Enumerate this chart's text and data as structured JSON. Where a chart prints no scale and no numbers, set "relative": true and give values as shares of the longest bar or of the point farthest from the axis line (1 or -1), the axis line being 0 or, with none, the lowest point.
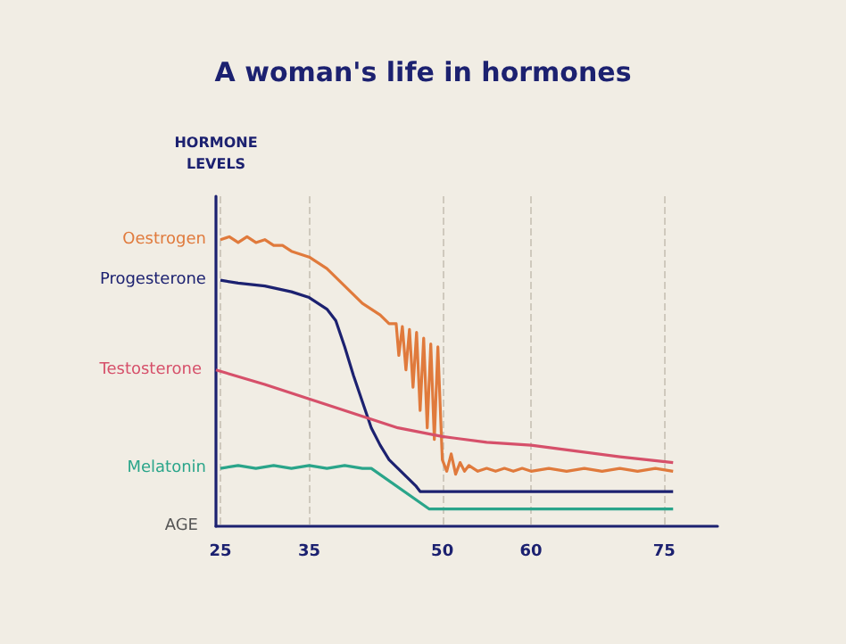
{
  "chart_data": {
    "type": "line",
    "title": "A woman's life in hormones",
    "xlabel": "AGE",
    "ylabel": "HORMONE LEVELS",
    "relative": true,
    "xlim": [
      24.5,
      81
    ],
    "xticks": [
      25,
      35,
      50,
      60,
      75
    ],
    "grid": "x",
    "legend": false,
    "tick_labels": "x",
    "marker": "none",
    "line_style": "solid",
    "series": [
      {
        "name": "Oestrogen",
        "color": "#e07a3c",
        "x": [
          25,
          26,
          27,
          28,
          29,
          30,
          31,
          32,
          33,
          34,
          35,
          36,
          37,
          38,
          39,
          40,
          41,
          42,
          43,
          44,
          44.8,
          45.1,
          45.5,
          45.9,
          46.3,
          46.7,
          47.1,
          47.5,
          47.9,
          48.3,
          48.7,
          49.1,
          49.5,
          50,
          50.5,
          51,
          51.5,
          52,
          52.5,
          53,
          54,
          55,
          56,
          57,
          58,
          59,
          60,
          62,
          64,
          66,
          68,
          70,
          72,
          74,
          76
        ],
        "values": [
          0.99,
          1,
          0.98,
          1,
          0.98,
          0.99,
          0.97,
          0.97,
          0.95,
          0.94,
          0.93,
          0.91,
          0.89,
          0.86,
          0.83,
          0.8,
          0.77,
          0.75,
          0.73,
          0.7,
          0.7,
          0.59,
          0.69,
          0.54,
          0.68,
          0.48,
          0.67,
          0.4,
          0.65,
          0.34,
          0.63,
          0.3,
          0.62,
          0.23,
          0.19,
          0.25,
          0.18,
          0.22,
          0.19,
          0.21,
          0.19,
          0.2,
          0.19,
          0.2,
          0.19,
          0.2,
          0.19,
          0.2,
          0.19,
          0.2,
          0.19,
          0.2,
          0.19,
          0.2,
          0.19
        ]
      },
      {
        "name": "Progesterone",
        "color": "#1c2170",
        "x": [
          25,
          27,
          30,
          33,
          35,
          37,
          38,
          39,
          40,
          41,
          42,
          43,
          44,
          45,
          46,
          47,
          47.5,
          76
        ],
        "values": [
          0.85,
          0.84,
          0.83,
          0.81,
          0.79,
          0.75,
          0.71,
          0.62,
          0.52,
          0.43,
          0.34,
          0.28,
          0.23,
          0.2,
          0.17,
          0.14,
          0.12,
          0.12
        ]
      },
      {
        "name": "Testosterone",
        "color": "#d6506a",
        "x": [
          24.5,
          30,
          35,
          40,
          45,
          50,
          55,
          60,
          65,
          70,
          76
        ],
        "values": [
          0.54,
          0.49,
          0.44,
          0.39,
          0.34,
          0.31,
          0.29,
          0.28,
          0.26,
          0.24,
          0.22
        ]
      },
      {
        "name": "Melatonin",
        "color": "#2aa58a",
        "x": [
          25,
          27,
          29,
          31,
          33,
          35,
          37,
          39,
          41,
          42,
          48.5,
          76
        ],
        "values": [
          0.2,
          0.21,
          0.2,
          0.21,
          0.2,
          0.21,
          0.2,
          0.21,
          0.2,
          0.2,
          0.06,
          0.06
        ]
      }
    ]
  }
}
